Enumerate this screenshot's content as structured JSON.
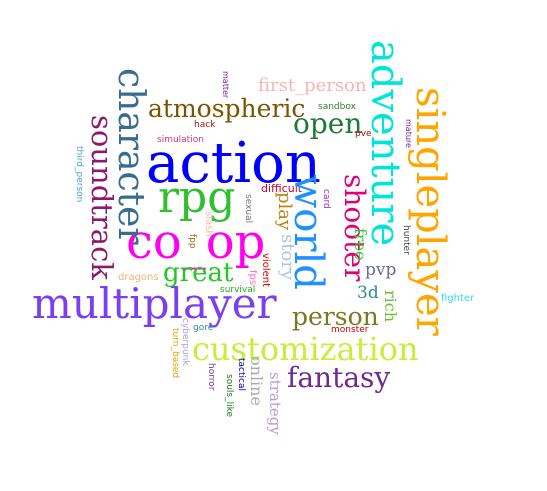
{
  "words": [
    {
      "key": "action",
      "text": "action",
      "color": "#0000ff"
    },
    {
      "key": "multiplayer",
      "text": "multiplayer",
      "color": "#7b3ff2"
    },
    {
      "key": "co_op",
      "text": "co_op",
      "color": "#ff00ee"
    },
    {
      "key": "rpg",
      "text": "rpg",
      "color": "#2fbf2f"
    },
    {
      "key": "adventure",
      "text": "adventure",
      "color": "#00e5d8"
    },
    {
      "key": "singleplayer",
      "text": "singleplayer",
      "color": "#ffa500"
    },
    {
      "key": "customization",
      "text": "customization",
      "color": "#c8ee3a"
    },
    {
      "key": "world",
      "text": "world",
      "color": "#1e90ff"
    },
    {
      "key": "character",
      "text": "character",
      "color": "#3a6d8c"
    },
    {
      "key": "soundtrack",
      "text": "soundtrack",
      "color": "#8b1a6b"
    },
    {
      "key": "shooter",
      "text": "shooter",
      "color": "#e0007a"
    },
    {
      "key": "atmospheric",
      "text": "atmospheric",
      "color": "#7a5400"
    },
    {
      "key": "open",
      "text": "open",
      "color": "#1f7a3a"
    },
    {
      "key": "fantasy",
      "text": "fantasy",
      "color": "#6e2a8c"
    },
    {
      "key": "great",
      "text": "great",
      "color": "#22c922"
    },
    {
      "key": "person",
      "text": "person",
      "color": "#7a7a22"
    },
    {
      "key": "first_person",
      "text": "first_person",
      "color": "#f5b5b5"
    },
    {
      "key": "online",
      "text": "online",
      "color": "#a9a9a9"
    },
    {
      "key": "strategy",
      "text": "strategy",
      "color": "#b39ddb"
    },
    {
      "key": "story",
      "text": "story",
      "color": "#b0c4de"
    },
    {
      "key": "play",
      "text": "play",
      "color": "#b8860b"
    },
    {
      "key": "pvp",
      "text": "pvp",
      "color": "#6b6b9a"
    },
    {
      "key": "3d",
      "text": "3d",
      "color": "#2e8b8b"
    },
    {
      "key": "rich",
      "text": "rich",
      "color": "#6bbf2f"
    },
    {
      "key": "free",
      "text": "free",
      "color": "#33cc33"
    },
    {
      "key": "difficult",
      "text": "difficult",
      "color": "#cc0033"
    },
    {
      "key": "sexual",
      "text": "sexual",
      "color": "#777777"
    },
    {
      "key": "card",
      "text": "card",
      "color": "#9933cc"
    },
    {
      "key": "hack",
      "text": "hack",
      "color": "#a31515"
    },
    {
      "key": "simulation",
      "text": "simulation",
      "color": "#d63384"
    },
    {
      "key": "sandbox",
      "text": "sandbox",
      "color": "#2e7d32"
    },
    {
      "key": "pve",
      "text": "pve",
      "color": "#a31515"
    },
    {
      "key": "mature",
      "text": "mature",
      "color": "#7a1a9a"
    },
    {
      "key": "matter",
      "text": "matter",
      "color": "#7a1a9a"
    },
    {
      "key": "third_person",
      "text": "third_person",
      "color": "#4aa3d6"
    },
    {
      "key": "hunter",
      "text": "hunter",
      "color": "#444444"
    },
    {
      "key": "fighter",
      "text": "fighter",
      "color": "#33d6f0"
    },
    {
      "key": "monster",
      "text": "monster",
      "color": "#cc0000"
    },
    {
      "key": "dragons",
      "text": "dragons",
      "color": "#f0b070"
    },
    {
      "key": "survival",
      "text": "survival",
      "color": "#22aa22"
    },
    {
      "key": "gore",
      "text": "gore",
      "color": "#2e8b8b"
    },
    {
      "key": "cyberpunk",
      "text": "cyberpunk",
      "color": "#b39ddb"
    },
    {
      "key": "turn_based",
      "text": "turn_based",
      "color": "#e6a400"
    },
    {
      "key": "horror",
      "text": "horror",
      "color": "#6b3fa0"
    },
    {
      "key": "souls_like",
      "text": "souls_like",
      "color": "#1a7a1a"
    },
    {
      "key": "tactical",
      "text": "tactical",
      "color": "#0000aa"
    },
    {
      "key": "violent",
      "text": "violent",
      "color": "#e00000"
    },
    {
      "key": "fps",
      "text": "fps",
      "color": "#ff66cc"
    },
    {
      "key": "fpp",
      "text": "fpp",
      "color": "#9a6a00"
    },
    {
      "key": "slash",
      "text": "slash",
      "color": "#f5c0a0"
    }
  ]
}
